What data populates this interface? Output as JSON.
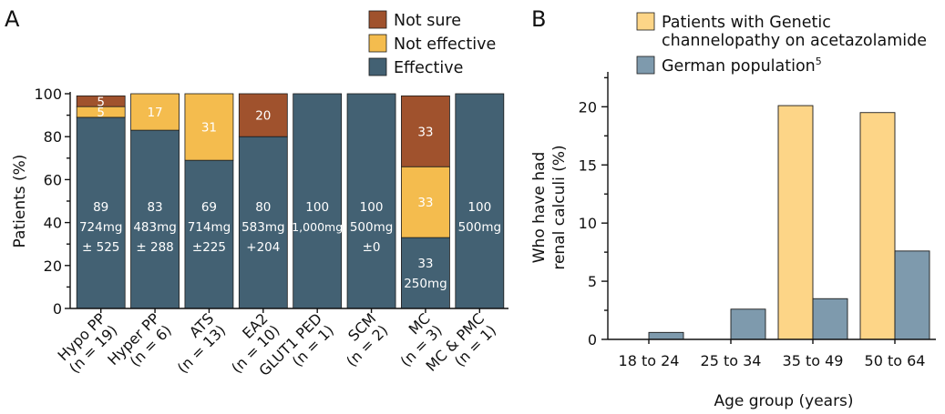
{
  "chart_data": [
    {
      "panel_letter": "A",
      "type": "bar",
      "stacked": true,
      "ylabel": "Patients (%)",
      "ylim": [
        0,
        100
      ],
      "yticks": [
        0,
        20,
        40,
        60,
        80,
        100
      ],
      "categories": [
        [
          "Hypo PP",
          "(n = 19)"
        ],
        [
          "Hyper PP",
          "(n = 6)"
        ],
        [
          "ATS",
          "(n = 13)"
        ],
        [
          "EA2",
          "(n = 10)"
        ],
        [
          "GLUT1 PED",
          "(n = 1)"
        ],
        [
          "SCM",
          "(n = 2)"
        ],
        [
          "MC",
          "(n = 3)"
        ],
        [
          "MC & PMC",
          "(n = 1)"
        ]
      ],
      "series": [
        {
          "name": "Effective",
          "color": "#436173",
          "values": [
            89,
            83,
            69,
            80,
            100,
            100,
            33,
            100
          ]
        },
        {
          "name": "Not effective",
          "color": "#f4bc4e",
          "values": [
            5,
            17,
            31,
            0,
            0,
            0,
            33,
            0
          ]
        },
        {
          "name": "Not sure",
          "color": "#a0522d",
          "values": [
            5,
            0,
            0,
            20,
            0,
            0,
            33,
            0
          ]
        }
      ],
      "legend_order": [
        "Not sure",
        "Not effective",
        "Effective"
      ],
      "legend_position": "top-right",
      "bar_labels": [
        {
          "category": 0,
          "series": "Effective",
          "lines": [
            "89",
            "724mg",
            "± 525"
          ]
        },
        {
          "category": 0,
          "series": "Not effective",
          "lines": [
            "5"
          ]
        },
        {
          "category": 0,
          "series": "Not sure",
          "lines": [
            "5"
          ]
        },
        {
          "category": 1,
          "series": "Effective",
          "lines": [
            "83",
            "483mg",
            "± 288"
          ]
        },
        {
          "category": 1,
          "series": "Not effective",
          "lines": [
            "17"
          ]
        },
        {
          "category": 2,
          "series": "Effective",
          "lines": [
            "69",
            "714mg",
            "±225"
          ]
        },
        {
          "category": 2,
          "series": "Not effective",
          "lines": [
            "31"
          ]
        },
        {
          "category": 3,
          "series": "Effective",
          "lines": [
            "80",
            "583mg",
            "+204"
          ]
        },
        {
          "category": 3,
          "series": "Not sure",
          "lines": [
            "20"
          ]
        },
        {
          "category": 4,
          "series": "Effective",
          "lines": [
            "100",
            "1,000mg"
          ]
        },
        {
          "category": 5,
          "series": "Effective",
          "lines": [
            "100",
            "500mg",
            "±0"
          ]
        },
        {
          "category": 6,
          "series": "Effective",
          "lines": [
            "33",
            "250mg"
          ]
        },
        {
          "category": 6,
          "series": "Not effective",
          "lines": [
            "33"
          ]
        },
        {
          "category": 6,
          "series": "Not sure",
          "lines": [
            "33"
          ]
        },
        {
          "category": 7,
          "series": "Effective",
          "lines": [
            "100",
            "500mg"
          ]
        }
      ]
    },
    {
      "panel_letter": "B",
      "type": "bar",
      "grouped": true,
      "xlabel": "Age group (years)",
      "ylabel_lines": [
        "Who have had",
        "renal calculi (%)"
      ],
      "ylim": [
        0,
        23
      ],
      "yticks": [
        0,
        5,
        10,
        15,
        20
      ],
      "categories": [
        "18 to 24",
        "25 to 34",
        "35 to 49",
        "50 to 64"
      ],
      "series": [
        {
          "name_lines": [
            "Patients with Genetic",
            "channelopathy on acetazolamide"
          ],
          "color": "#fdd587",
          "values": [
            null,
            null,
            20.1,
            19.5
          ]
        },
        {
          "name_lines": [
            "German population"
          ],
          "superscript": "5",
          "color": "#7e9aad",
          "values": [
            0.6,
            2.6,
            3.5,
            7.6
          ]
        }
      ],
      "legend_position": "top"
    }
  ]
}
